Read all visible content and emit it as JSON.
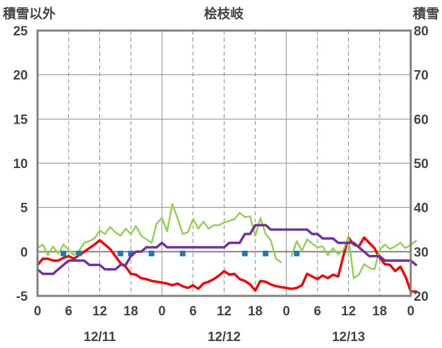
{
  "chart_data": {
    "type": "line",
    "title": "桧枝岐",
    "left_axis_label": "積雪以外",
    "right_axis_label": "積雪",
    "x_ticks": [
      "0",
      "6",
      "12",
      "18",
      "0",
      "6",
      "12",
      "18",
      "0",
      "6",
      "12",
      "18",
      "0"
    ],
    "date_labels": [
      "12/11",
      "12/12",
      "12/13"
    ],
    "x_range_hours": [
      0,
      72
    ],
    "ylim_left": [
      -5,
      25
    ],
    "ylim_right": [
      20,
      80
    ],
    "y_ticks_left": [
      "-5",
      "0",
      "5",
      "10",
      "15",
      "20",
      "25"
    ],
    "y_ticks_right": [
      "20",
      "30",
      "40",
      "50",
      "60",
      "70",
      "80"
    ],
    "grid": true,
    "series": [
      {
        "axis": "left",
        "color": "#ff0000",
        "values": [
          [
            0,
            -1.5
          ],
          [
            1,
            -0.8
          ],
          [
            2,
            -0.8
          ],
          [
            3,
            -1.0
          ],
          [
            4,
            -1.0
          ],
          [
            5,
            -0.7
          ],
          [
            6,
            -0.5
          ],
          [
            7,
            -0.8
          ],
          [
            8,
            -0.4
          ],
          [
            9,
            0.0
          ],
          [
            10,
            0.4
          ],
          [
            11,
            0.8
          ],
          [
            12,
            1.3
          ],
          [
            13,
            0.8
          ],
          [
            14,
            0.3
          ],
          [
            15,
            -0.5
          ],
          [
            16,
            -1.3
          ],
          [
            17,
            -1.7
          ],
          [
            18,
            -2.5
          ],
          [
            19,
            -2.6
          ],
          [
            20,
            -3.0
          ],
          [
            21,
            -3.1
          ],
          [
            22,
            -3.3
          ],
          [
            23,
            -3.4
          ],
          [
            24,
            -3.5
          ],
          [
            25,
            -3.6
          ],
          [
            26,
            -3.8
          ],
          [
            27,
            -3.6
          ],
          [
            28,
            -3.9
          ],
          [
            29,
            -4.1
          ],
          [
            30,
            -3.8
          ],
          [
            31,
            -4.2
          ],
          [
            32,
            -3.6
          ],
          [
            33,
            -3.4
          ],
          [
            34,
            -3.1
          ],
          [
            35,
            -2.7
          ],
          [
            36,
            -2.2
          ],
          [
            37,
            -2.6
          ],
          [
            38,
            -2.5
          ],
          [
            39,
            -3.1
          ],
          [
            40,
            -3.3
          ],
          [
            41,
            -3.7
          ],
          [
            42,
            -4.4
          ],
          [
            43,
            -3.3
          ],
          [
            44,
            -3.4
          ],
          [
            45,
            -3.7
          ],
          [
            46,
            -3.9
          ],
          [
            47,
            -4.0
          ],
          [
            48,
            -4.1
          ],
          [
            49,
            -4.2
          ],
          [
            50,
            -4.1
          ],
          [
            51,
            -3.8
          ],
          [
            52,
            -2.5
          ],
          [
            53,
            -2.8
          ],
          [
            54,
            -3.1
          ],
          [
            55,
            -2.7
          ],
          [
            56,
            -3.0
          ],
          [
            57,
            -2.6
          ],
          [
            58,
            -2.8
          ],
          [
            59,
            -0.5
          ],
          [
            60,
            1.6
          ],
          [
            61,
            0.8
          ],
          [
            62,
            0.6
          ],
          [
            63,
            1.6
          ],
          [
            64,
            1.0
          ],
          [
            65,
            0.4
          ],
          [
            66,
            -0.7
          ],
          [
            67,
            -1.4
          ],
          [
            68,
            -1.5
          ],
          [
            69,
            -2.2
          ],
          [
            70,
            -1.7
          ],
          [
            71,
            -2.8
          ],
          [
            72,
            -4.5
          ],
          [
            73,
            -4.5
          ]
        ]
      },
      {
        "axis": "left",
        "color": "#92d050",
        "values": [
          [
            0,
            0.4
          ],
          [
            1,
            0.8
          ],
          [
            2,
            -0.4
          ],
          [
            3,
            0.6
          ],
          [
            4,
            -0.2
          ],
          [
            5,
            0.8
          ],
          [
            6,
            0.2
          ],
          [
            7,
            -0.4
          ],
          [
            8,
            0.1
          ],
          [
            9,
            1.0
          ],
          [
            10,
            1.2
          ],
          [
            11,
            1.5
          ],
          [
            12,
            2.4
          ],
          [
            13,
            2.0
          ],
          [
            14,
            2.8
          ],
          [
            15,
            2.2
          ],
          [
            16,
            1.8
          ],
          [
            17,
            2.6
          ],
          [
            18,
            2.0
          ],
          [
            19,
            2.9
          ],
          [
            20,
            1.8
          ],
          [
            21,
            1.4
          ],
          [
            22,
            1.0
          ],
          [
            23,
            3.2
          ],
          [
            24,
            3.8
          ],
          [
            25,
            2.3
          ],
          [
            26,
            5.4
          ],
          [
            27,
            3.8
          ],
          [
            28,
            2.0
          ],
          [
            29,
            2.2
          ],
          [
            30,
            3.7
          ],
          [
            31,
            2.6
          ],
          [
            32,
            3.4
          ],
          [
            33,
            2.6
          ],
          [
            34,
            3.0
          ],
          [
            35,
            3.0
          ],
          [
            36,
            3.3
          ],
          [
            37,
            3.5
          ],
          [
            38,
            3.7
          ],
          [
            39,
            4.4
          ],
          [
            40,
            3.9
          ],
          [
            41,
            4.0
          ],
          [
            42,
            1.8
          ],
          [
            43,
            3.8
          ],
          [
            44,
            2.0
          ],
          [
            45,
            1.3
          ],
          [
            46,
            -0.8
          ],
          [
            47,
            -1.2
          ],
          [
            null,
            null
          ],
          [
            49,
            -0.5
          ],
          [
            50,
            1.2
          ],
          [
            51,
            0.1
          ],
          [
            52,
            1.4
          ],
          [
            53,
            0.9
          ],
          [
            54,
            0.5
          ],
          [
            55,
            0.6
          ],
          [
            56,
            -0.4
          ],
          [
            57,
            0.4
          ],
          [
            58,
            -0.3
          ],
          [
            59,
            0.2
          ],
          [
            60,
            1.6
          ],
          [
            61,
            -3.0
          ],
          [
            62,
            -2.6
          ],
          [
            63,
            -1.4
          ],
          [
            64,
            -1.8
          ],
          [
            65,
            -2.0
          ],
          [
            66,
            0.2
          ],
          [
            67,
            0.8
          ],
          [
            68,
            0.3
          ],
          [
            69,
            0.6
          ],
          [
            70,
            1.0
          ],
          [
            71,
            0.4
          ],
          [
            72,
            0.8
          ],
          [
            73,
            1.2
          ]
        ]
      },
      {
        "axis": "left",
        "color": "#1f77b4",
        "style": "markers",
        "values": [
          [
            5,
            -0.2
          ],
          [
            8,
            -0.2
          ],
          [
            16,
            -0.2
          ],
          [
            18,
            -0.2
          ],
          [
            22,
            -0.2
          ],
          [
            28,
            -0.2
          ],
          [
            40,
            -0.2
          ],
          [
            44,
            -0.2
          ],
          [
            50,
            -0.2
          ]
        ]
      },
      {
        "axis": "right",
        "color": "#7030a0",
        "values": [
          [
            0,
            26
          ],
          [
            1,
            25
          ],
          [
            2,
            25
          ],
          [
            3,
            25
          ],
          [
            4,
            26
          ],
          [
            5,
            27
          ],
          [
            6,
            28
          ],
          [
            7,
            28
          ],
          [
            8,
            28
          ],
          [
            9,
            28
          ],
          [
            10,
            27
          ],
          [
            11,
            27
          ],
          [
            12,
            27
          ],
          [
            13,
            26
          ],
          [
            14,
            26
          ],
          [
            15,
            26
          ],
          [
            16,
            27
          ],
          [
            17,
            27
          ],
          [
            18,
            29
          ],
          [
            19,
            30
          ],
          [
            20,
            30
          ],
          [
            21,
            31
          ],
          [
            22,
            31
          ],
          [
            23,
            31
          ],
          [
            24,
            32
          ],
          [
            25,
            31
          ],
          [
            26,
            31
          ],
          [
            27,
            31
          ],
          [
            28,
            31
          ],
          [
            29,
            31
          ],
          [
            30,
            31
          ],
          [
            31,
            31
          ],
          [
            32,
            31
          ],
          [
            33,
            31
          ],
          [
            34,
            31
          ],
          [
            35,
            31
          ],
          [
            36,
            31
          ],
          [
            37,
            32
          ],
          [
            38,
            32
          ],
          [
            39,
            32
          ],
          [
            40,
            34
          ],
          [
            41,
            34
          ],
          [
            42,
            36
          ],
          [
            43,
            36
          ],
          [
            44,
            36
          ],
          [
            45,
            35
          ],
          [
            46,
            35
          ],
          [
            47,
            35
          ],
          [
            48,
            35
          ],
          [
            49,
            35
          ],
          [
            50,
            35
          ],
          [
            51,
            35
          ],
          [
            52,
            35
          ],
          [
            53,
            34
          ],
          [
            54,
            34
          ],
          [
            55,
            33
          ],
          [
            56,
            33
          ],
          [
            57,
            33
          ],
          [
            58,
            32
          ],
          [
            59,
            32
          ],
          [
            60,
            32
          ],
          [
            61,
            32
          ],
          [
            62,
            31
          ],
          [
            63,
            30
          ],
          [
            64,
            29
          ],
          [
            65,
            29
          ],
          [
            66,
            29
          ],
          [
            67,
            28
          ],
          [
            68,
            28
          ],
          [
            69,
            28
          ],
          [
            70,
            28
          ],
          [
            71,
            28
          ],
          [
            72,
            28
          ],
          [
            73,
            27
          ]
        ]
      }
    ]
  }
}
